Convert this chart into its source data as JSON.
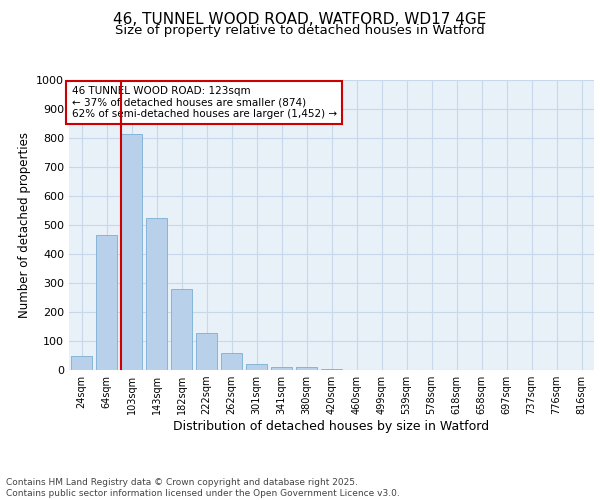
{
  "title": "46, TUNNEL WOOD ROAD, WATFORD, WD17 4GE",
  "subtitle": "Size of property relative to detached houses in Watford",
  "xlabel": "Distribution of detached houses by size in Watford",
  "ylabel": "Number of detached properties",
  "categories": [
    "24sqm",
    "64sqm",
    "103sqm",
    "143sqm",
    "182sqm",
    "222sqm",
    "262sqm",
    "301sqm",
    "341sqm",
    "380sqm",
    "420sqm",
    "460sqm",
    "499sqm",
    "539sqm",
    "578sqm",
    "618sqm",
    "658sqm",
    "697sqm",
    "737sqm",
    "776sqm",
    "816sqm"
  ],
  "values": [
    47,
    465,
    815,
    525,
    280,
    128,
    58,
    20,
    10,
    10,
    5,
    0,
    0,
    0,
    0,
    0,
    0,
    0,
    0,
    0,
    0
  ],
  "bar_color": "#b8d0ea",
  "bar_edge_color": "#7aafd4",
  "vline_x_index": 2,
  "annotation_title": "46 TUNNEL WOOD ROAD: 123sqm",
  "annotation_line1": "← 37% of detached houses are smaller (874)",
  "annotation_line2": "62% of semi-detached houses are larger (1,452) →",
  "annotation_box_color": "#ffffff",
  "annotation_box_edge": "#cc0000",
  "vline_color": "#cc0000",
  "grid_color": "#c8d8ea",
  "bg_color": "#e8f0f8",
  "ylim": [
    0,
    1000
  ],
  "yticks": [
    0,
    100,
    200,
    300,
    400,
    500,
    600,
    700,
    800,
    900,
    1000
  ],
  "footer_line1": "Contains HM Land Registry data © Crown copyright and database right 2025.",
  "footer_line2": "Contains public sector information licensed under the Open Government Licence v3.0."
}
